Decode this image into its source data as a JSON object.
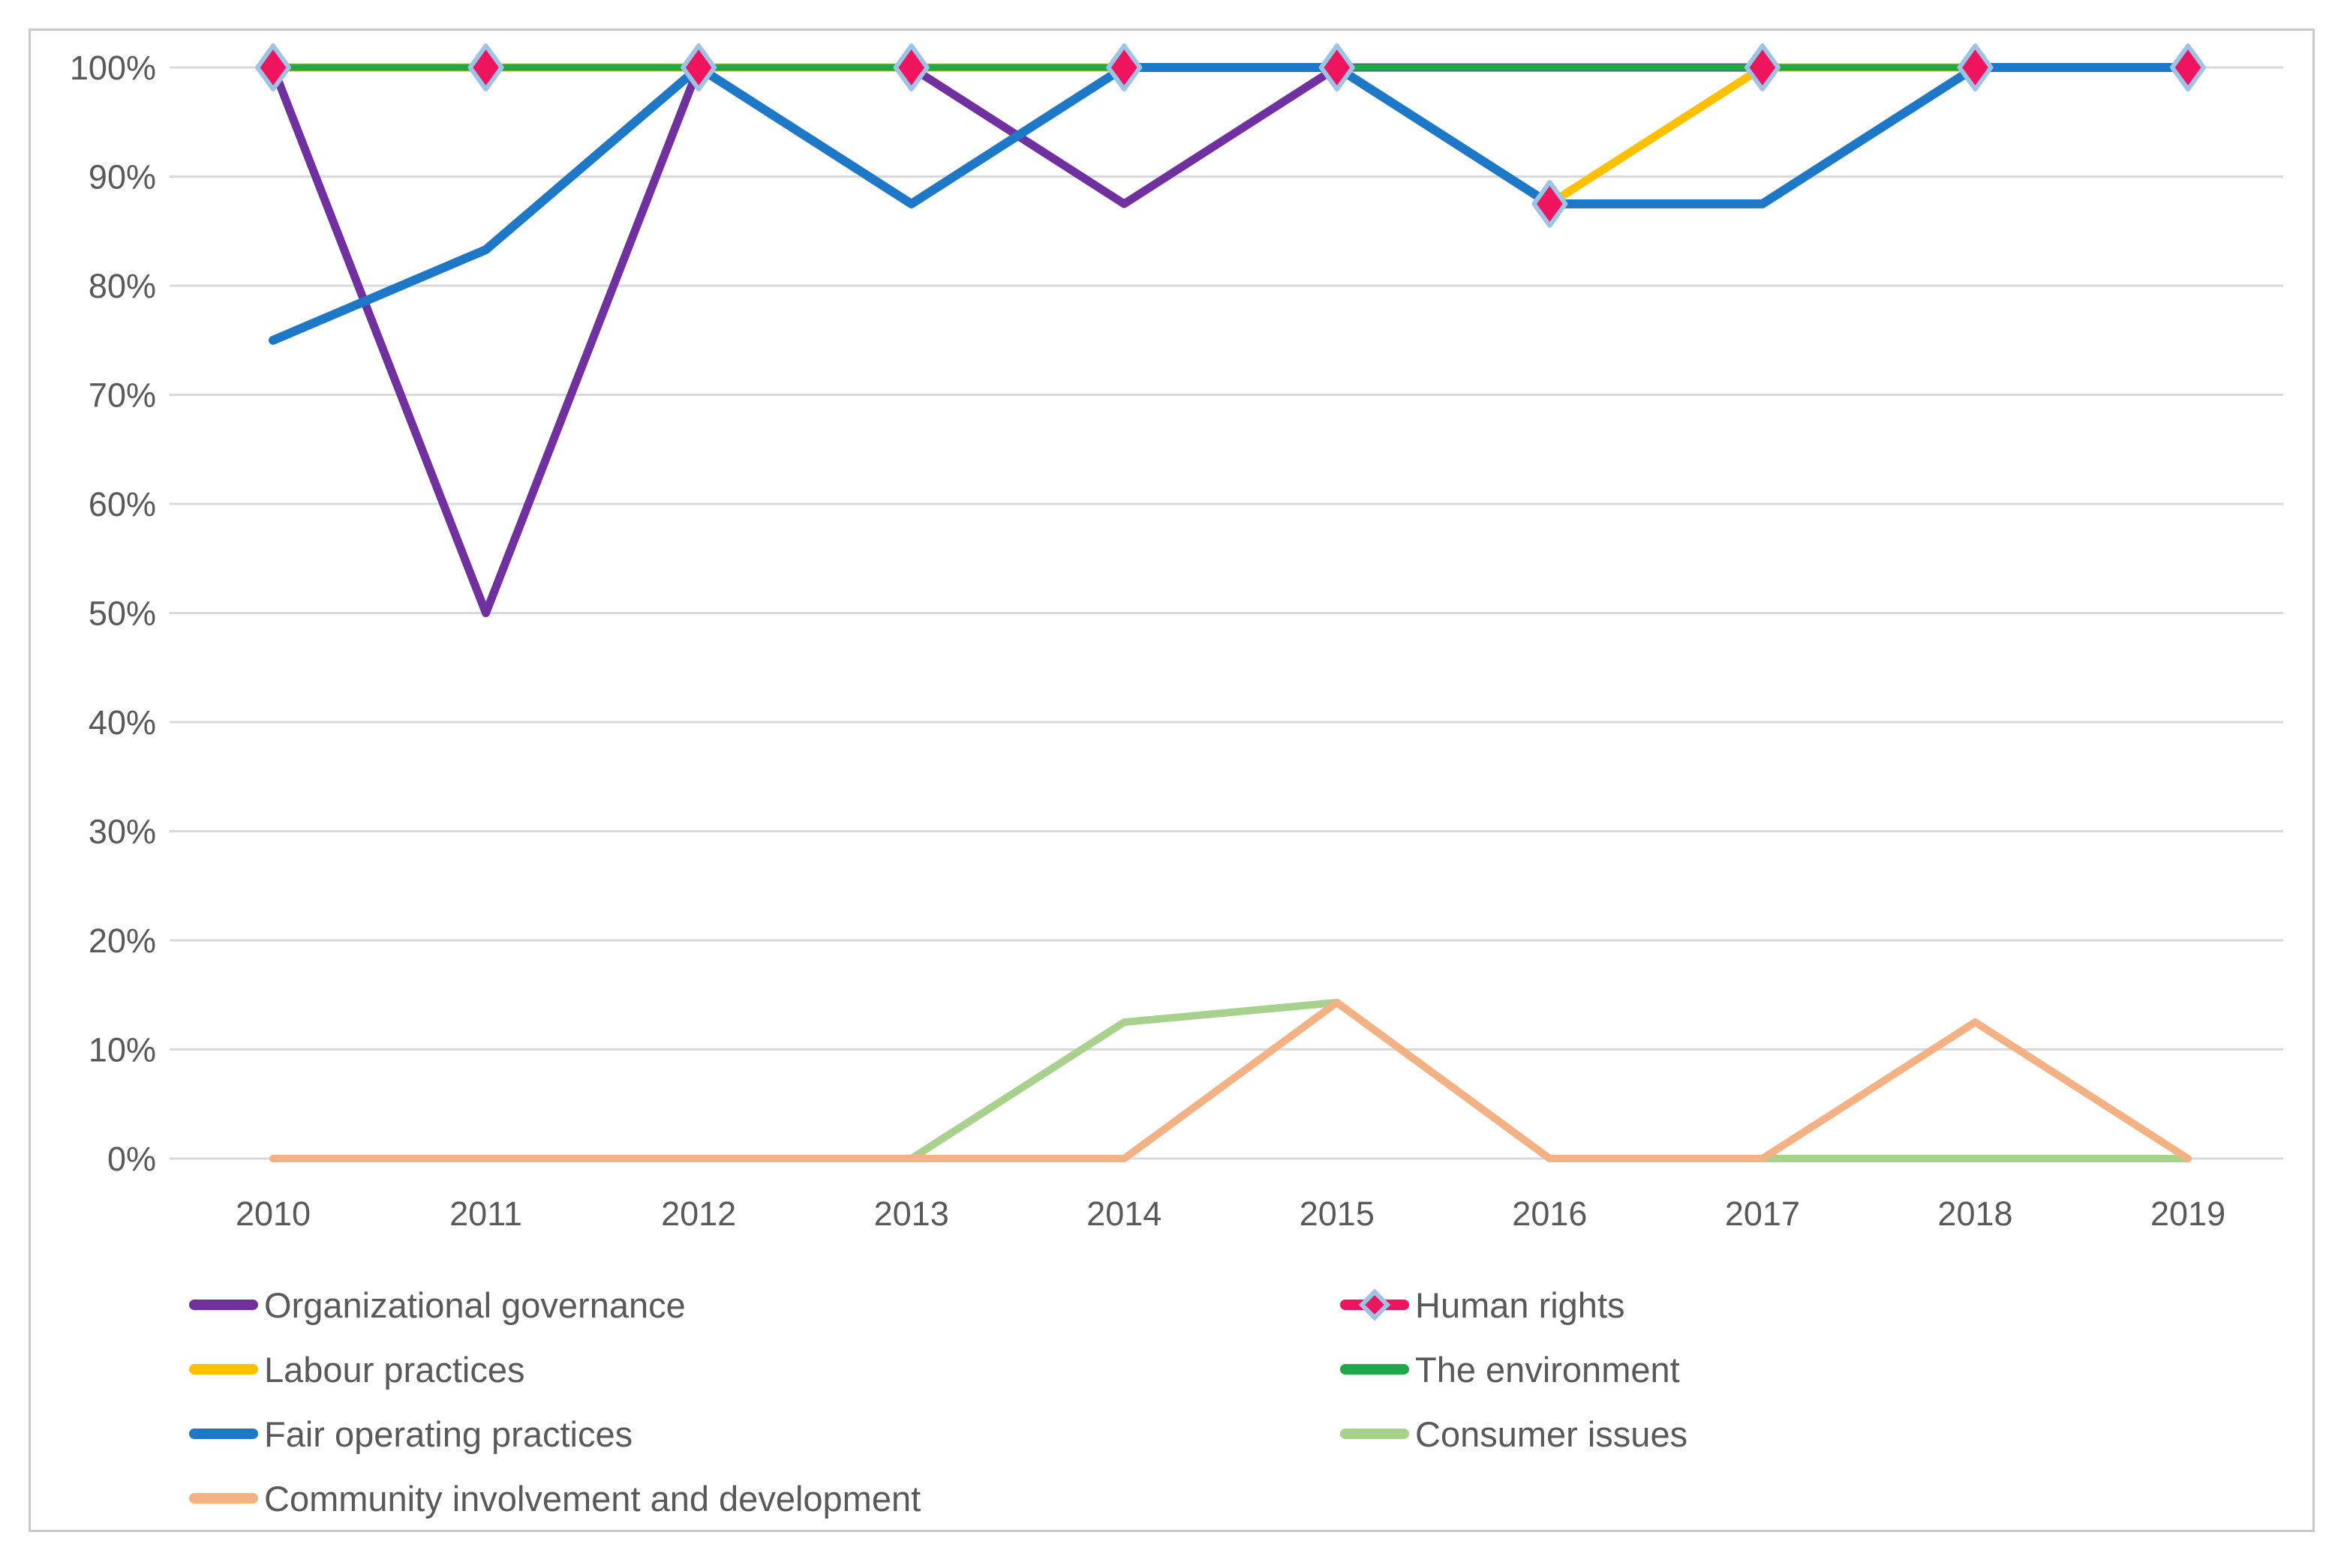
{
  "chart_data": {
    "type": "line",
    "title": "",
    "x": [
      2010,
      2011,
      2012,
      2013,
      2014,
      2015,
      2016,
      2017,
      2018,
      2019
    ],
    "y_axis": {
      "min": 0,
      "max": 100,
      "tick_step": 10,
      "tick_labels": [
        "0%",
        "10%",
        "20%",
        "30%",
        "40%",
        "50%",
        "60%",
        "70%",
        "80%",
        "90%",
        "100%"
      ],
      "grid": true
    },
    "series": [
      {
        "name": "Organizational governance",
        "color": "#7030A0",
        "width": 11,
        "values": [
          100,
          50,
          100,
          100,
          87.5,
          100,
          100,
          100,
          100,
          100
        ]
      },
      {
        "name": "Human rights",
        "color": "#EE145E",
        "width": 9,
        "marker": "diamond",
        "marker_border": "#9DC3E6",
        "values": [
          100,
          100,
          100,
          100,
          100,
          100,
          87.5,
          100,
          100,
          100
        ]
      },
      {
        "name": "Labour practices",
        "color": "#FFC000",
        "width": 11,
        "values": [
          100,
          100,
          100,
          100,
          100,
          100,
          87.5,
          100,
          100,
          100
        ]
      },
      {
        "name": "The environment",
        "color": "#1FA84A",
        "width": 9,
        "values": [
          100,
          100,
          100,
          100,
          100,
          100,
          100,
          100,
          100,
          100
        ]
      },
      {
        "name": "Fair operating practices",
        "color": "#1E78C8",
        "width": 12,
        "values": [
          75,
          83.3,
          100,
          87.5,
          100,
          100,
          87.5,
          87.5,
          100,
          100
        ]
      },
      {
        "name": "Consumer issues",
        "color": "#A9D18E",
        "width": 10,
        "values": [
          0,
          0,
          0,
          0,
          12.5,
          14.3,
          0,
          0,
          0,
          0
        ]
      },
      {
        "name": "Community involvement and development",
        "color": "#F4B183",
        "width": 10,
        "values": [
          0,
          0,
          0,
          0,
          0,
          14.3,
          0,
          0,
          12.5,
          0
        ]
      }
    ],
    "legend_position": "bottom",
    "legend_columns": [
      [
        "Organizational governance",
        "Labour practices",
        "Fair operating practices",
        "Community involvement and development"
      ],
      [
        "Human rights",
        "The environment",
        "Consumer issues"
      ]
    ]
  },
  "colors": {
    "background": "#FFFFFF",
    "gridline": "#D9D9D9",
    "axis_text": "#595959",
    "chart_border": "#C9C9C9",
    "marker_outline": "#9DC3E6"
  }
}
